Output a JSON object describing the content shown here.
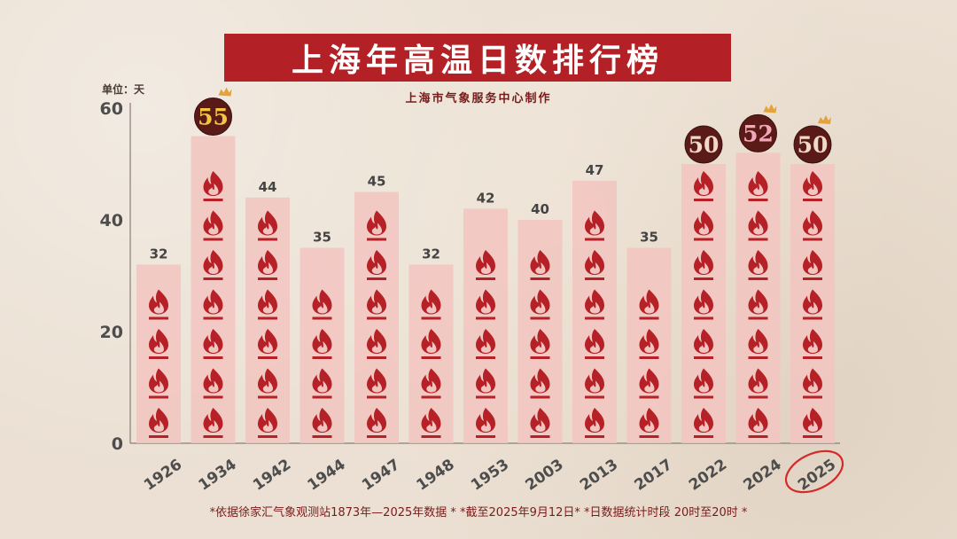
{
  "title": "上海年高温日数排行榜",
  "subtitle": "上海市气象服务中心制作",
  "unit_label": "单位：天",
  "footnote": "*依据徐家汇气象观测站1873年—2025年数据 * *截至2025年9月12日* *日数据统计时段 20时至20时 *",
  "colors": {
    "bar": "#f2c4c0",
    "flame": "#b52126",
    "title_bg": "#b32025",
    "axis_text": "#4d4d4d",
    "label_text": "#444444",
    "badge_dark": "#5a1a18",
    "badge_gold": "#f4c542",
    "badge_pink": "#f2a8b8",
    "badge_light": "#f0d9c6",
    "circle_red": "#d42a2a"
  },
  "chart_data": {
    "type": "bar",
    "categories": [
      "1926",
      "1934",
      "1942",
      "1944",
      "1947",
      "1948",
      "1953",
      "2003",
      "2013",
      "2017",
      "2022",
      "2024",
      "2025"
    ],
    "values": [
      32,
      55,
      44,
      35,
      45,
      32,
      42,
      40,
      47,
      35,
      50,
      52,
      50
    ],
    "value_labels": [
      "32",
      "55",
      "44",
      "35",
      "45",
      "32",
      "42",
      "40",
      "47",
      "35",
      "50",
      "52",
      "50"
    ],
    "ylim": [
      0,
      60
    ],
    "yticks": [
      "0",
      "20",
      "40",
      "60"
    ],
    "highlighted_badges": [
      {
        "category": "1934",
        "style": "gold",
        "crown": true
      },
      {
        "category": "2022",
        "style": "light",
        "crown": false
      },
      {
        "category": "2024",
        "style": "pink",
        "crown": true
      },
      {
        "category": "2025",
        "style": "light",
        "crown": true
      }
    ],
    "circled_category": "2025",
    "icon": "flame-icon"
  }
}
